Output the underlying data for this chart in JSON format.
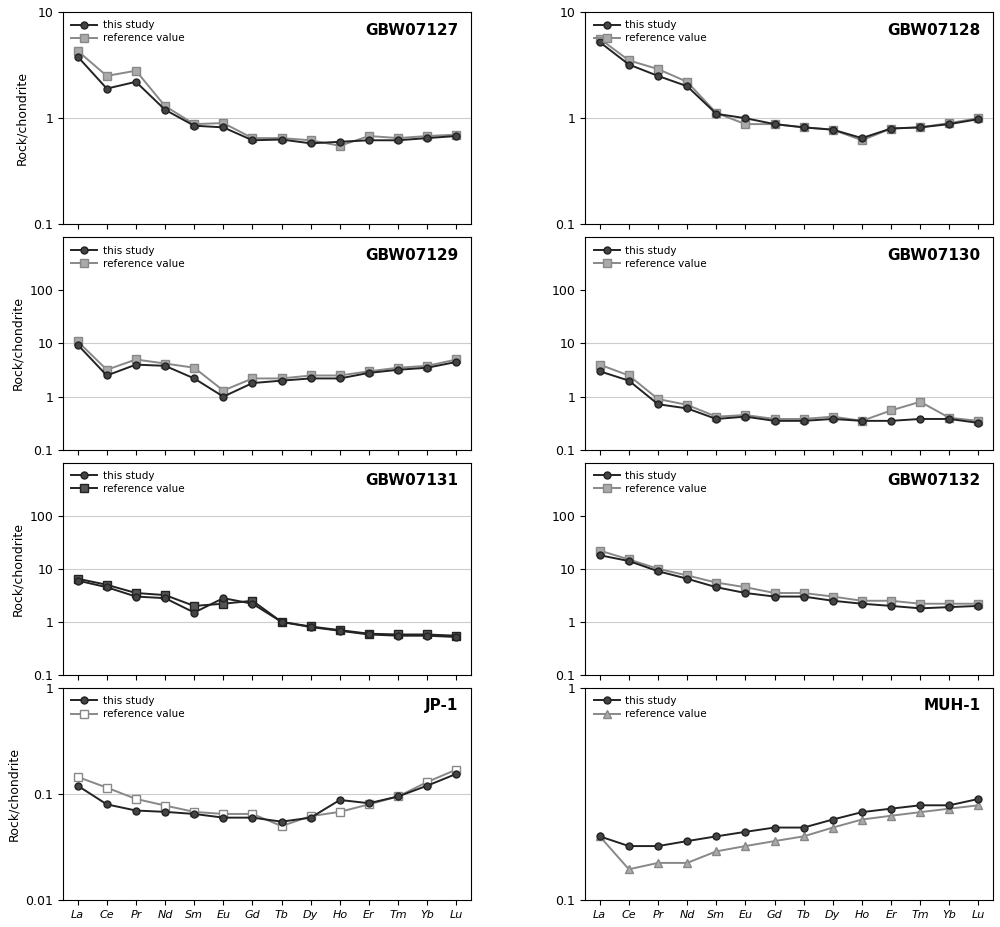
{
  "elements": [
    "La",
    "Ce",
    "Pr",
    "Nd",
    "Sm",
    "Eu",
    "Gd",
    "Tb",
    "Dy",
    "Ho",
    "Er",
    "Tm",
    "Yb",
    "Lu"
  ],
  "panels": [
    {
      "title": "GBW07127",
      "ylim": [
        0.1,
        10
      ],
      "yticks": [
        0.1,
        1,
        10
      ],
      "hlines": [
        1
      ],
      "this_study": [
        3.8,
        1.9,
        2.2,
        1.2,
        0.85,
        0.82,
        0.62,
        0.63,
        0.58,
        0.6,
        0.62,
        0.62,
        0.65,
        0.68
      ],
      "reference": [
        4.3,
        2.5,
        2.8,
        1.3,
        0.88,
        0.9,
        0.65,
        0.65,
        0.62,
        0.55,
        0.68,
        0.65,
        0.68,
        0.7
      ],
      "ref_color": "#888888",
      "study_color": "#222222",
      "ref_marker": "s",
      "study_marker": "o",
      "ref_mfc": "#aaaaaa",
      "study_mfc": "#444444"
    },
    {
      "title": "GBW07128",
      "ylim": [
        0.1,
        10
      ],
      "yticks": [
        0.1,
        1,
        10
      ],
      "hlines": [
        1
      ],
      "this_study": [
        5.2,
        3.2,
        2.5,
        2.0,
        1.1,
        1.0,
        0.88,
        0.82,
        0.78,
        0.65,
        0.8,
        0.82,
        0.88,
        0.98
      ],
      "reference": [
        5.6,
        3.5,
        2.9,
        2.2,
        1.12,
        0.88,
        0.88,
        0.82,
        0.78,
        0.62,
        0.8,
        0.82,
        0.9,
        1.0
      ],
      "ref_color": "#888888",
      "study_color": "#222222",
      "ref_marker": "s",
      "study_marker": "o",
      "ref_mfc": "#aaaaaa",
      "study_mfc": "#444444"
    },
    {
      "title": "GBW07129",
      "ylim": [
        0.1,
        1000
      ],
      "yticks": [
        0.1,
        1,
        10,
        100
      ],
      "hlines": [
        1,
        10
      ],
      "this_study": [
        9.5,
        2.5,
        4.0,
        3.8,
        2.2,
        1.0,
        1.8,
        2.0,
        2.2,
        2.2,
        2.8,
        3.2,
        3.5,
        4.5
      ],
      "reference": [
        11.0,
        3.2,
        5.0,
        4.2,
        3.5,
        1.3,
        2.2,
        2.2,
        2.5,
        2.5,
        3.0,
        3.5,
        3.8,
        5.0
      ],
      "ref_color": "#888888",
      "study_color": "#222222",
      "ref_marker": "s",
      "study_marker": "o",
      "ref_mfc": "#aaaaaa",
      "study_mfc": "#444444"
    },
    {
      "title": "GBW07130",
      "ylim": [
        0.1,
        1000
      ],
      "yticks": [
        0.1,
        1,
        10,
        100
      ],
      "hlines": [
        1,
        10
      ],
      "this_study": [
        3.0,
        2.0,
        0.72,
        0.6,
        0.38,
        0.42,
        0.35,
        0.35,
        0.38,
        0.35,
        0.35,
        0.38,
        0.38,
        0.32
      ],
      "reference": [
        4.0,
        2.5,
        0.9,
        0.7,
        0.42,
        0.45,
        0.38,
        0.38,
        0.42,
        0.35,
        0.55,
        0.8,
        0.4,
        0.35
      ],
      "ref_color": "#888888",
      "study_color": "#222222",
      "ref_marker": "s",
      "study_marker": "o",
      "ref_mfc": "#aaaaaa",
      "study_mfc": "#444444"
    },
    {
      "title": "GBW07131",
      "ylim": [
        0.1,
        1000
      ],
      "yticks": [
        0.1,
        1,
        10,
        100
      ],
      "hlines": [
        1,
        10,
        100
      ],
      "this_study": [
        6.0,
        4.5,
        3.0,
        2.8,
        1.5,
        2.8,
        2.2,
        1.0,
        0.8,
        0.68,
        0.58,
        0.55,
        0.55,
        0.52
      ],
      "reference": [
        6.5,
        5.0,
        3.5,
        3.2,
        2.0,
        2.2,
        2.5,
        1.0,
        0.82,
        0.7,
        0.6,
        0.58,
        0.58,
        0.55
      ],
      "ref_color": "#222222",
      "study_color": "#222222",
      "ref_marker": "s",
      "study_marker": "o",
      "ref_mfc": "#555555",
      "study_mfc": "#444444"
    },
    {
      "title": "GBW07132",
      "ylim": [
        0.1,
        1000
      ],
      "yticks": [
        0.1,
        1,
        10,
        100
      ],
      "hlines": [
        1,
        10
      ],
      "this_study": [
        18.0,
        14.0,
        9.0,
        6.5,
        4.5,
        3.5,
        3.0,
        3.0,
        2.5,
        2.2,
        2.0,
        1.8,
        1.9,
        2.0
      ],
      "reference": [
        22.0,
        15.0,
        10.0,
        7.5,
        5.5,
        4.5,
        3.5,
        3.5,
        3.0,
        2.5,
        2.5,
        2.2,
        2.2,
        2.2
      ],
      "ref_color": "#888888",
      "study_color": "#222222",
      "ref_marker": "s",
      "study_marker": "o",
      "ref_mfc": "#aaaaaa",
      "study_mfc": "#444444"
    },
    {
      "title": "JP-1",
      "ylim": [
        0.01,
        1
      ],
      "yticks": [
        0.01,
        0.1,
        1
      ],
      "hlines": [
        0.1
      ],
      "this_study": [
        0.12,
        0.08,
        0.07,
        0.068,
        0.065,
        0.06,
        0.06,
        0.055,
        0.06,
        0.088,
        0.082,
        0.095,
        0.12,
        0.155
      ],
      "reference": [
        0.145,
        0.115,
        0.09,
        0.078,
        0.068,
        0.065,
        0.065,
        0.05,
        0.062,
        0.068,
        0.08,
        0.095,
        0.13,
        0.17
      ],
      "ref_color": "#888888",
      "study_color": "#222222",
      "ref_marker": "s",
      "study_marker": "o",
      "ref_mfc": "#ffffff",
      "study_mfc": "#444444"
    },
    {
      "title": "MUH-1",
      "ylim": [
        0.1,
        1
      ],
      "yticks": [
        0.1,
        1
      ],
      "hlines": [],
      "this_study": [
        0.2,
        0.18,
        0.18,
        0.19,
        0.2,
        0.21,
        0.22,
        0.22,
        0.24,
        0.26,
        0.27,
        0.28,
        0.28,
        0.3
      ],
      "reference": [
        0.2,
        0.14,
        0.15,
        0.15,
        0.17,
        0.18,
        0.19,
        0.2,
        0.22,
        0.24,
        0.25,
        0.26,
        0.27,
        0.28
      ],
      "ref_color": "#888888",
      "study_color": "#222222",
      "ref_marker": "^",
      "study_marker": "o",
      "ref_mfc": "#aaaaaa",
      "study_mfc": "#444444"
    }
  ],
  "ylabel": "Rock/chondrite",
  "background_color": "#ffffff"
}
